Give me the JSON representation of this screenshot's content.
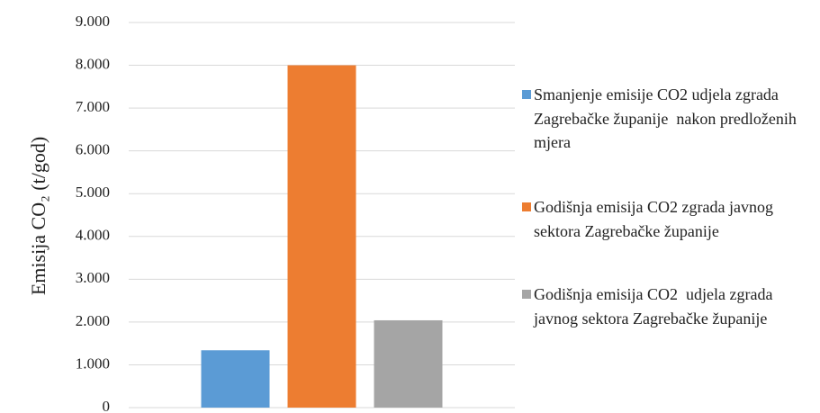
{
  "chart_data": {
    "type": "bar",
    "y_label": "Emisija CO₂ (t/god)",
    "categories": [
      null
    ],
    "series": [
      {
        "name": "Smanjenje emisije CO2 udjela zgrada Zagrebačke županije  nakon predloženih mjera",
        "color": "#5b9bd5",
        "values": [
          1340
        ]
      },
      {
        "name": "Godišnja emisija CO2 zgrada javnog sektora Zagrebačke županije",
        "color": "#ed7d31",
        "values": [
          8000
        ]
      },
      {
        "name": "Godišnja emisija CO2  udjela zgrada javnog sektora Zagrebačke županije",
        "color": "#a5a5a5",
        "values": [
          2040
        ]
      }
    ],
    "ylim": [
      0,
      9000
    ],
    "yticks": [
      0,
      {
        "value": 1000,
        "label": "1.000"
      },
      {
        "value": 2000,
        "label": "2.000"
      },
      {
        "value": 3000,
        "label": "3.000"
      },
      {
        "value": 4000,
        "label": "4.000"
      },
      {
        "value": 5000,
        "label": "5.000"
      },
      {
        "value": 6000,
        "label": "6.000"
      },
      {
        "value": 7000,
        "label": "7.000"
      },
      {
        "value": 8000,
        "label": "8.000"
      },
      {
        "value": 9000,
        "label": "9.000"
      }
    ],
    "grid": true,
    "legend": "right"
  }
}
